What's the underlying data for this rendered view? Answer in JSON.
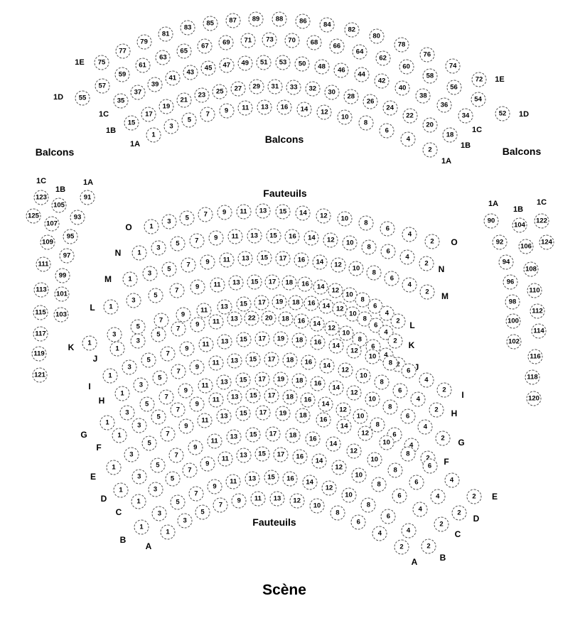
{
  "titles": {
    "balcony": "Balcons",
    "orchestra": "Fauteuils",
    "stage": "Scène"
  },
  "balcony_rows": [
    {
      "label": "1E",
      "seats": [
        75,
        77,
        79,
        81,
        83,
        85,
        87,
        89,
        88,
        86,
        84,
        82,
        80,
        78,
        76,
        74,
        72
      ]
    },
    {
      "label": "1D",
      "seats": [
        55,
        57,
        59,
        61,
        63,
        65,
        67,
        69,
        71,
        73,
        70,
        68,
        66,
        64,
        62,
        60,
        58,
        56,
        54,
        52
      ]
    },
    {
      "label": "1C",
      "seats": [
        35,
        37,
        39,
        41,
        43,
        45,
        47,
        49,
        51,
        53,
        50,
        48,
        46,
        44,
        42,
        40,
        38,
        36,
        34
      ]
    },
    {
      "label": "1B",
      "seats": [
        15,
        17,
        19,
        21,
        23,
        25,
        27,
        29,
        31,
        33,
        32,
        30,
        28,
        26,
        24,
        22,
        20,
        18
      ]
    },
    {
      "label": "1A",
      "seats": [
        1,
        3,
        5,
        7,
        9,
        11,
        13,
        16,
        14,
        12,
        10,
        8,
        6,
        4,
        2
      ]
    }
  ],
  "orchestra_rows": [
    {
      "label": "O",
      "seats": [
        1,
        3,
        5,
        7,
        9,
        11,
        13,
        15,
        14,
        12,
        10,
        8,
        6,
        4,
        2
      ]
    },
    {
      "label": "N",
      "seats": [
        1,
        3,
        5,
        7,
        9,
        11,
        13,
        15,
        16,
        14,
        12,
        10,
        8,
        6,
        4,
        2
      ]
    },
    {
      "label": "M",
      "seats": [
        1,
        3,
        5,
        7,
        9,
        11,
        13,
        15,
        17,
        16,
        14,
        12,
        10,
        8,
        6,
        4,
        2
      ]
    },
    {
      "label": "L",
      "seats": [
        1,
        3,
        5,
        7,
        9,
        11,
        13,
        15,
        17,
        18,
        16,
        14,
        12,
        10,
        8,
        6,
        4,
        2
      ]
    },
    {
      "label": "K",
      "seats": [
        1,
        3,
        5,
        7,
        9,
        11,
        13,
        15,
        17,
        19,
        18,
        16,
        14,
        12,
        10,
        8,
        6,
        4,
        2
      ]
    },
    {
      "label": "J",
      "seats": [
        1,
        3,
        5,
        7,
        9,
        11,
        13,
        22,
        20,
        18,
        16,
        14,
        12,
        10,
        8,
        6,
        4,
        2
      ]
    },
    {
      "label": "I",
      "seats": [
        1,
        3,
        5,
        7,
        9,
        11,
        13,
        15,
        17,
        19,
        18,
        16,
        14,
        12,
        10,
        8,
        6,
        4,
        2
      ]
    },
    {
      "label": "H",
      "seats": [
        1,
        3,
        5,
        7,
        9,
        11,
        13,
        15,
        17,
        18,
        16,
        14,
        12,
        10,
        8,
        6,
        4,
        2
      ]
    },
    {
      "label": "G",
      "seats": [
        1,
        3,
        5,
        7,
        9,
        11,
        13,
        15,
        17,
        19,
        18,
        16,
        14,
        12,
        10,
        8,
        6,
        4,
        2
      ]
    },
    {
      "label": "F",
      "seats": [
        1,
        3,
        5,
        7,
        9,
        11,
        13,
        15,
        17,
        18,
        16,
        14,
        12,
        10,
        8,
        6,
        4,
        2
      ]
    },
    {
      "label": "E",
      "seats": [
        1,
        3,
        5,
        7,
        9,
        11,
        13,
        15,
        17,
        19,
        18,
        16,
        14,
        12,
        10,
        8,
        6,
        4,
        2
      ]
    },
    {
      "label": "D",
      "seats": [
        1,
        3,
        5,
        7,
        9,
        11,
        13,
        15,
        17,
        18,
        16,
        14,
        12,
        10,
        8,
        6,
        4,
        2
      ]
    },
    {
      "label": "C",
      "seats": [
        1,
        3,
        5,
        7,
        9,
        11,
        13,
        15,
        17,
        16,
        14,
        12,
        10,
        8,
        6,
        4,
        2
      ]
    },
    {
      "label": "B",
      "seats": [
        1,
        3,
        5,
        7,
        9,
        11,
        13,
        15,
        16,
        14,
        12,
        10,
        8,
        6,
        4,
        2
      ]
    },
    {
      "label": "A",
      "seats": [
        1,
        3,
        5,
        7,
        9,
        11,
        13,
        12,
        10,
        8,
        6,
        4,
        2
      ]
    }
  ],
  "side_left_columns": [
    {
      "label": "1C",
      "seats": [
        123,
        125
      ]
    },
    {
      "label": "1B",
      "seats": [
        105,
        107,
        109,
        111,
        113,
        115,
        117,
        119,
        121
      ]
    },
    {
      "label": "1A",
      "seats": [
        91,
        93,
        95,
        97,
        99,
        101,
        103
      ]
    }
  ],
  "side_right_columns": [
    {
      "label": "1A",
      "seats": [
        90,
        92,
        94,
        96,
        98,
        100,
        102
      ]
    },
    {
      "label": "1B",
      "seats": [
        104,
        106,
        108,
        110,
        112,
        114,
        116,
        118,
        120
      ]
    },
    {
      "label": "1C",
      "seats": [
        122,
        124
      ]
    }
  ]
}
